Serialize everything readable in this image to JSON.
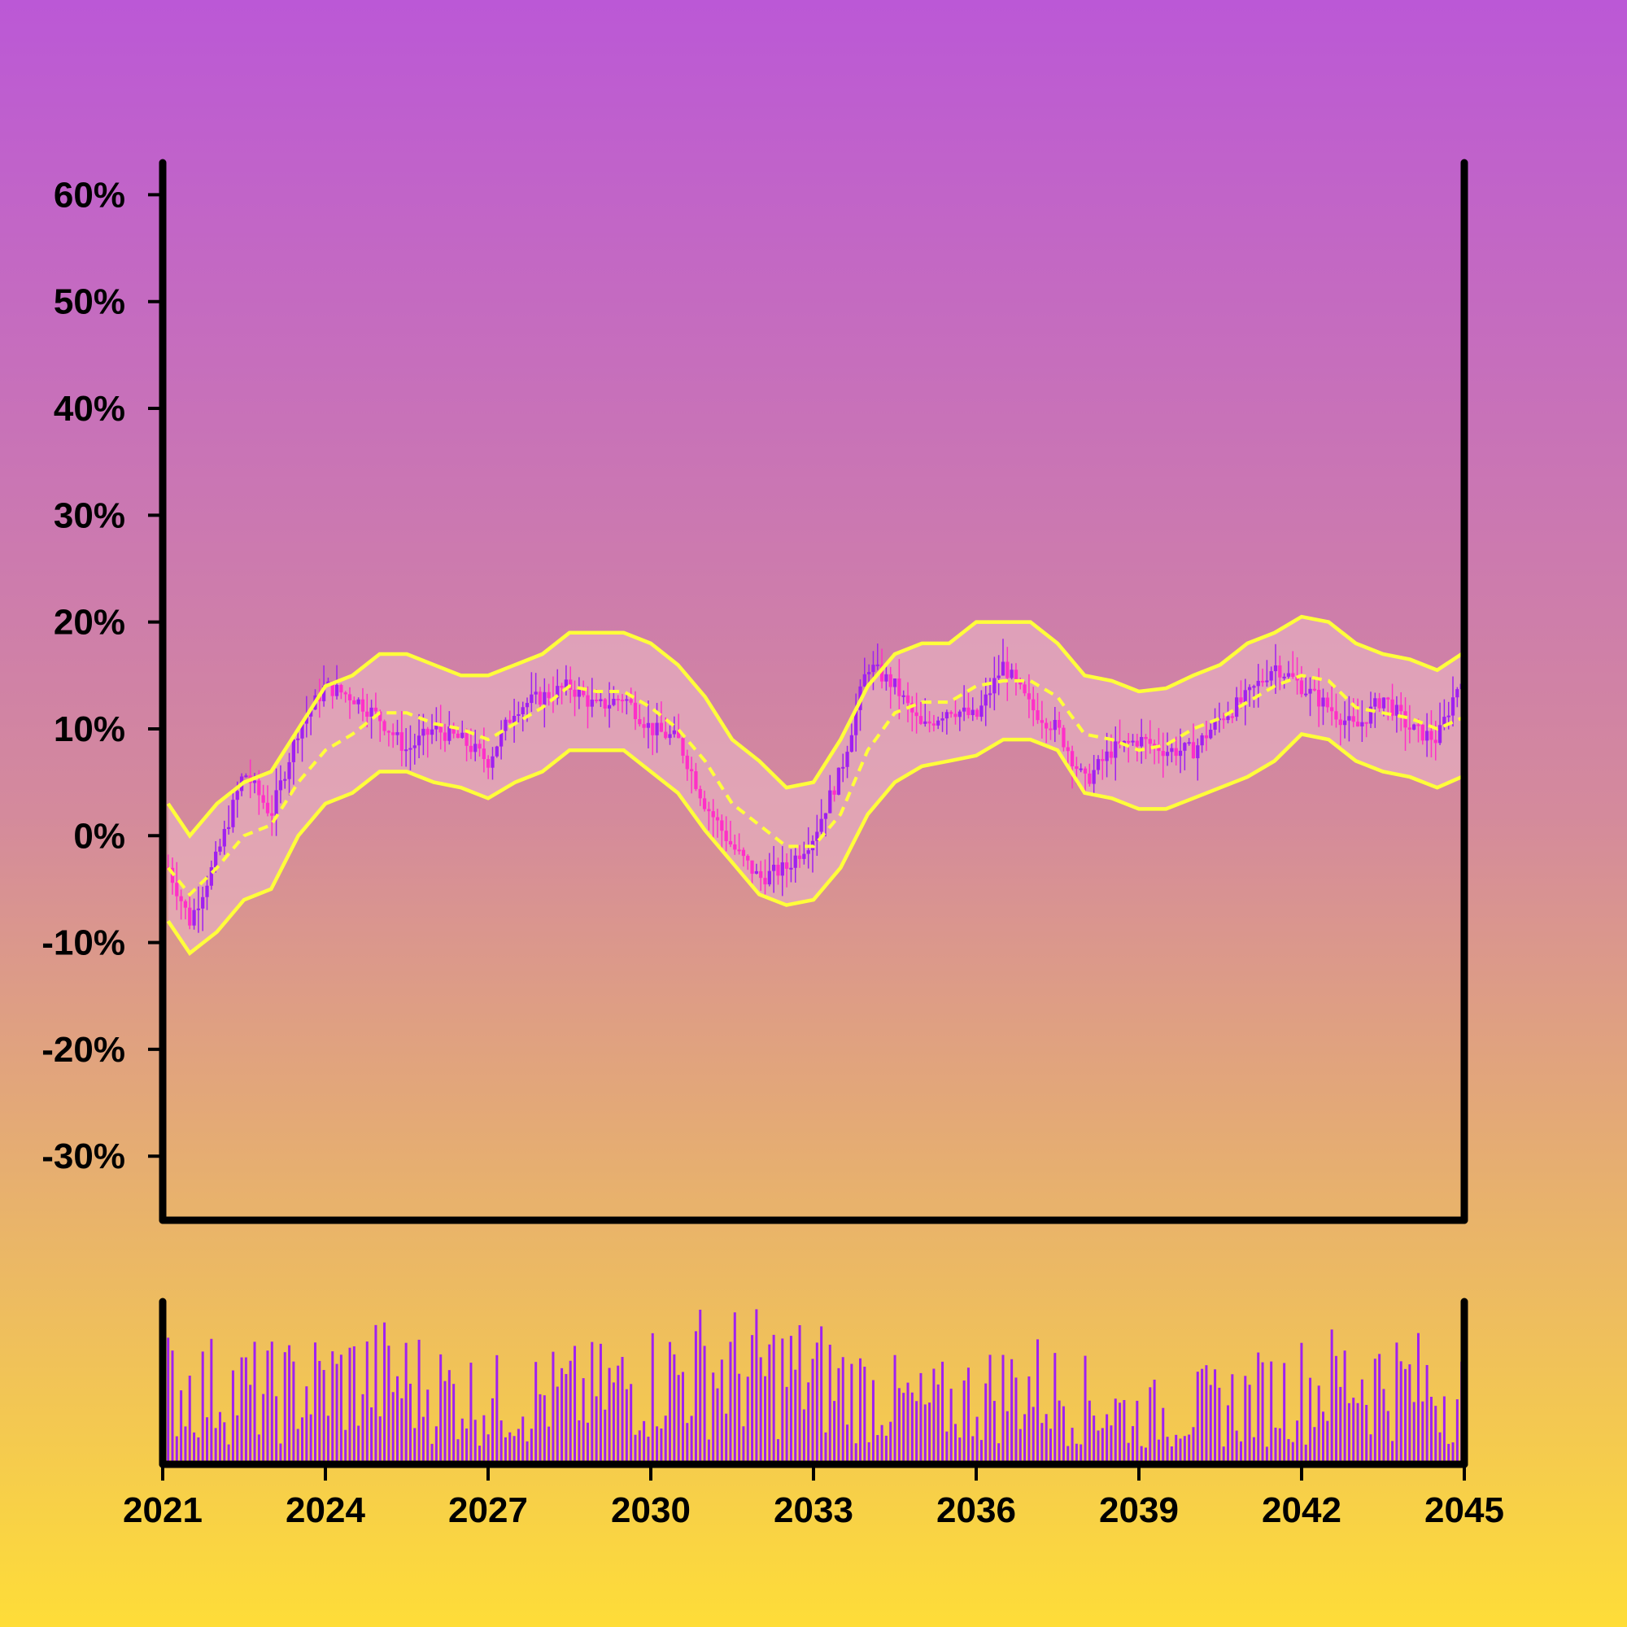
{
  "chart_data": {
    "type": "candlestick",
    "colors": {
      "up": "#a020f0",
      "down": "#ff2fc8",
      "band_line": "#ffff3a",
      "band_fill": "#e8b2c2",
      "volume": "#a020f0",
      "axis": "#000000",
      "background_top": "#bb58d6",
      "background_bottom": "#fedd38"
    },
    "grid": false,
    "price_panel": {
      "ylim": [
        -36,
        63
      ],
      "yticks": [
        -30,
        -20,
        -10,
        0,
        10,
        20,
        30,
        40,
        50,
        60
      ],
      "ytick_labels": [
        "-30%",
        "-20%",
        "-10%",
        "0%",
        "10%",
        "20%",
        "30%",
        "40%",
        "50%",
        "60%"
      ],
      "overlay": "Bollinger bands (upper, middle dashed, lower)"
    },
    "volume_panel": {
      "shown": true
    },
    "x_axis": {
      "range": [
        2021,
        2045
      ],
      "ticks": [
        2021,
        2024,
        2027,
        2030,
        2033,
        2036,
        2039,
        2042,
        2045
      ],
      "tick_labels": [
        "2021",
        "2024",
        "2027",
        "2030",
        "2033",
        "2036",
        "2039",
        "2042",
        "2045"
      ]
    },
    "close_anchors": {
      "x": [
        2021.1,
        2021.5,
        2022.0,
        2022.5,
        2023.0,
        2023.5,
        2024.0,
        2024.5,
        2025.0,
        2025.5,
        2026.0,
        2026.5,
        2027.0,
        2027.5,
        2028.0,
        2028.5,
        2029.0,
        2029.5,
        2030.0,
        2030.5,
        2031.0,
        2031.5,
        2032.0,
        2032.5,
        2033.0,
        2033.5,
        2034.0,
        2034.5,
        2035.0,
        2035.5,
        2036.0,
        2036.5,
        2037.0,
        2037.5,
        2038.0,
        2038.5,
        2039.0,
        2039.5,
        2040.0,
        2040.5,
        2041.0,
        2041.5,
        2042.0,
        2042.5,
        2043.0,
        2043.5,
        2044.0,
        2044.5,
        2044.95
      ],
      "close": [
        -3,
        -8,
        -2,
        6,
        2,
        10,
        14,
        13,
        11,
        8,
        10,
        9,
        7,
        12,
        13,
        14,
        12,
        13,
        10,
        9,
        3,
        -1,
        -4,
        -3,
        0,
        6,
        16,
        14,
        10,
        12,
        11,
        16,
        12,
        10,
        5,
        8,
        9,
        8,
        8,
        11,
        13,
        16,
        14,
        12,
        10,
        13,
        10,
        9,
        15
      ]
    },
    "band_anchors": {
      "x": [
        2021.1,
        2021.5,
        2022.0,
        2022.5,
        2023.0,
        2023.5,
        2024.0,
        2024.5,
        2025.0,
        2025.5,
        2026.0,
        2026.5,
        2027.0,
        2027.5,
        2028.0,
        2028.5,
        2029.0,
        2029.5,
        2030.0,
        2030.5,
        2031.0,
        2031.5,
        2032.0,
        2032.5,
        2033.0,
        2033.5,
        2034.0,
        2034.5,
        2035.0,
        2035.5,
        2036.0,
        2036.5,
        2037.0,
        2037.5,
        2038.0,
        2038.5,
        2039.0,
        2039.5,
        2040.0,
        2040.5,
        2041.0,
        2041.5,
        2042.0,
        2042.5,
        2043.0,
        2043.5,
        2044.0,
        2044.5,
        2044.95
      ],
      "upper": [
        3,
        0,
        3,
        5,
        6,
        10,
        14,
        15,
        17,
        17,
        16,
        15,
        15,
        16,
        17,
        19,
        19,
        19,
        18,
        16,
        13,
        9,
        7,
        4.5,
        5,
        9,
        14,
        17,
        18,
        18,
        20,
        20,
        20,
        18,
        15,
        14.5,
        13.5,
        13.8,
        15,
        16,
        18,
        19,
        20.5,
        20,
        18,
        17,
        16.5,
        15.5,
        17
      ],
      "middle": [
        -3,
        -5.5,
        -3,
        0,
        1,
        5,
        8,
        9.5,
        11.5,
        11.5,
        10.5,
        10,
        9,
        10.5,
        12,
        14,
        13.5,
        13.5,
        12,
        10,
        7,
        3,
        1,
        -1,
        -1,
        2,
        8,
        11.5,
        12.5,
        12.5,
        14,
        14.5,
        14.5,
        13,
        9.5,
        9,
        8,
        8.5,
        10,
        11,
        12.5,
        14,
        15,
        14.5,
        12,
        11.5,
        11,
        10,
        11
      ],
      "lower": [
        -8,
        -11,
        -9,
        -6,
        -5,
        0,
        3,
        4,
        6,
        6,
        5,
        4.5,
        3.5,
        5,
        6,
        8,
        8,
        8,
        6,
        4,
        0.5,
        -2.5,
        -5.5,
        -6.5,
        -6,
        -3,
        2,
        5,
        6.5,
        7,
        7.5,
        9,
        9,
        8,
        4,
        3.5,
        2.5,
        2.5,
        3.5,
        4.5,
        5.5,
        7,
        9.5,
        9,
        7,
        6,
        5.5,
        4.5,
        5.5
      ]
    },
    "volume_anchors": {
      "x": [
        2021,
        2023,
        2025,
        2027,
        2029,
        2031,
        2033,
        2035,
        2037,
        2039,
        2041,
        2043,
        2045
      ],
      "level": [
        0.5,
        0.45,
        0.55,
        0.4,
        0.45,
        0.6,
        0.55,
        0.35,
        0.5,
        0.3,
        0.4,
        0.55,
        0.45
      ]
    }
  }
}
